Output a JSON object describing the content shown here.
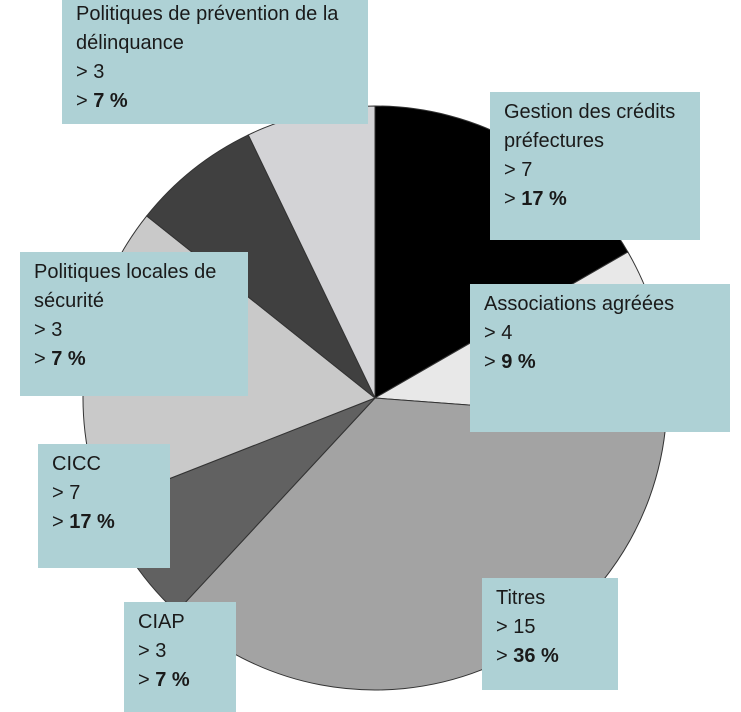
{
  "chart_data": {
    "type": "pie",
    "categories": [
      "Gestion des crédits préfectures",
      "Associations agréées",
      "Titres",
      "CIAP",
      "CICC",
      "Politiques locales de sécurité",
      "Politiques de prévention de la délinquance"
    ],
    "values": [
      7,
      4,
      15,
      3,
      7,
      3,
      3
    ],
    "value_labels": [
      "> 7",
      "> 4",
      "> 15",
      "> 3",
      "> 7",
      "> 3",
      "> 3"
    ],
    "marker": ">",
    "percent_labels": [
      "17 %",
      "9 %",
      "36 %",
      "7 %",
      "17 %",
      "7 %",
      "7 %"
    ],
    "colors": [
      "#000000",
      "#e8e8e8",
      "#a3a3a3",
      "#616161",
      "#c9c9c9",
      "#404040",
      "#d3d3d6"
    ]
  }
}
